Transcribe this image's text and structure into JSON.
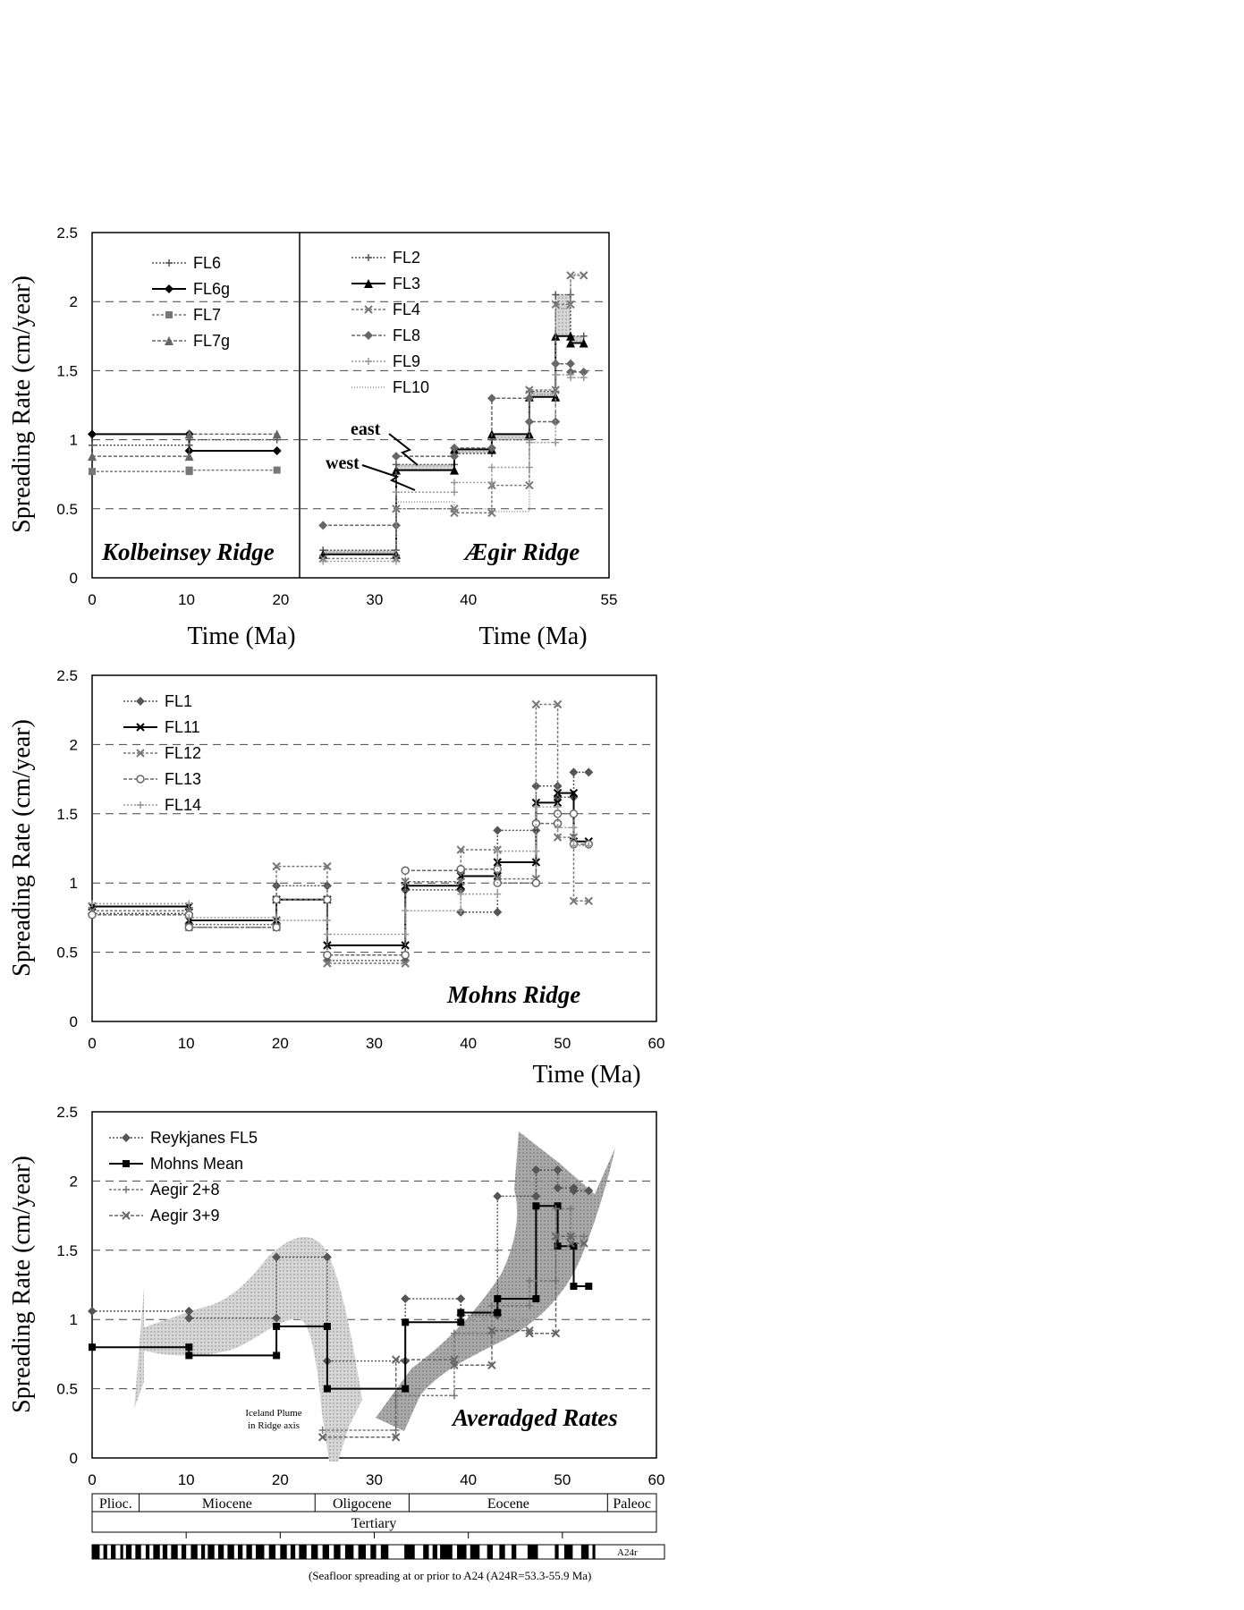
{
  "chart_data": [
    {
      "type": "line",
      "step": true,
      "ridge_label": "Kolbeinsey Ridge",
      "ylabel": "Spreading Rate (cm/year)",
      "xlabel": "Time (Ma)",
      "xlim": [
        0,
        22
      ],
      "ylim": [
        0,
        2.5
      ],
      "xticks": [
        0,
        10,
        20
      ],
      "yticks": [
        0,
        0.5,
        1,
        1.5,
        2,
        2.5
      ],
      "grid": "dashed horizontal at 0.5, 1, 1.5, 2",
      "legend_position": "top-left",
      "series": [
        {
          "name": "FL6",
          "marker": "plus",
          "x": [
            0,
            10.3,
            10.3,
            19.6
          ],
          "y": [
            0.96,
            0.96,
            1.0,
            1.0
          ]
        },
        {
          "name": "FL6g",
          "marker": "diamond",
          "x": [
            0,
            10.3,
            10.3,
            19.6
          ],
          "y": [
            1.04,
            1.04,
            0.92,
            0.92
          ]
        },
        {
          "name": "FL7",
          "marker": "square",
          "x": [
            0,
            10.3,
            10.3,
            19.6
          ],
          "y": [
            0.77,
            0.77,
            0.78,
            0.78
          ]
        },
        {
          "name": "FL7g",
          "marker": "triangle",
          "x": [
            0,
            10.3,
            10.3,
            19.6
          ],
          "y": [
            0.88,
            0.88,
            1.04,
            1.04
          ]
        }
      ]
    },
    {
      "type": "line",
      "step": true,
      "ridge_label": "Ægir Ridge",
      "xlabel": "Time (Ma)",
      "xlim": [
        22,
        55
      ],
      "ylim": [
        0,
        2.5
      ],
      "xticks": [
        30,
        40,
        55
      ],
      "grid": "dashed horizontal at 0.5, 1, 1.5, 2",
      "legend_position": "top-left",
      "annotations": [
        "east",
        "west"
      ],
      "series": [
        {
          "name": "FL2",
          "marker": "plus",
          "x": [
            24.5,
            32.3,
            32.3,
            38.5,
            38.5,
            42.5,
            42.5,
            46.5,
            46.5,
            49.3,
            49.3,
            50.9,
            50.9,
            52.3
          ],
          "y": [
            0.2,
            0.2,
            0.82,
            0.82,
            0.9,
            0.9,
            1.0,
            1.0,
            1.35,
            1.35,
            2.05,
            2.05,
            1.75,
            1.75
          ]
        },
        {
          "name": "FL3",
          "marker": "triangle",
          "x": [
            24.5,
            32.3,
            32.3,
            38.5,
            38.5,
            42.5,
            42.5,
            46.5,
            46.5,
            49.3,
            49.3,
            50.9,
            50.9,
            52.3
          ],
          "y": [
            0.17,
            0.17,
            0.78,
            0.78,
            0.93,
            0.93,
            1.04,
            1.04,
            1.31,
            1.31,
            1.75,
            1.75,
            1.7,
            1.7
          ]
        },
        {
          "name": "FL4",
          "marker": "x",
          "x": [
            24.5,
            32.3,
            32.3,
            38.5,
            38.5,
            42.5,
            42.5,
            46.5,
            46.5,
            49.3,
            49.3,
            50.9,
            50.9,
            52.3
          ],
          "y": [
            0.14,
            0.14,
            0.5,
            0.5,
            0.47,
            0.47,
            0.67,
            0.67,
            1.36,
            1.36,
            1.98,
            1.98,
            2.19,
            2.19
          ]
        },
        {
          "name": "FL8",
          "marker": "diamond",
          "x": [
            24.5,
            32.3,
            32.3,
            38.5,
            38.5,
            42.5,
            42.5,
            46.5,
            46.5,
            49.3,
            49.3,
            50.9,
            50.9,
            52.3
          ],
          "y": [
            0.38,
            0.38,
            0.88,
            0.88,
            0.94,
            0.94,
            1.3,
            1.3,
            1.13,
            1.13,
            1.55,
            1.55,
            1.49,
            1.49
          ]
        },
        {
          "name": "FL9",
          "marker": "plus",
          "x": [
            24.5,
            32.3,
            32.3,
            38.5,
            38.5,
            42.5,
            42.5,
            46.5,
            46.5,
            49.3,
            49.3,
            50.9,
            50.9,
            52.3
          ],
          "y": [
            0.12,
            0.12,
            0.62,
            0.62,
            0.69,
            0.69,
            0.8,
            0.8,
            0.98,
            0.98,
            1.47,
            1.47,
            1.45,
            1.45
          ]
        },
        {
          "name": "FL10",
          "marker": "none",
          "x": [
            24.5,
            32.3,
            32.3,
            38.5,
            38.5,
            42.5,
            42.5,
            46.5,
            46.5,
            49.3,
            49.3,
            50.9,
            50.9,
            52.3
          ],
          "y": [
            0.18,
            0.18,
            0.55,
            0.55,
            0.5,
            0.5,
            0.48,
            0.48,
            1.33,
            1.33,
            1.95,
            1.95,
            2.2,
            2.2
          ]
        }
      ]
    },
    {
      "type": "line",
      "step": true,
      "ridge_label": "Mohns Ridge",
      "ylabel": "Spreading Rate (cm/year)",
      "xlabel": "Time (Ma)",
      "xlim": [
        0,
        60
      ],
      "ylim": [
        0,
        2.5
      ],
      "xticks": [
        0,
        10,
        20,
        30,
        40,
        50,
        60
      ],
      "yticks": [
        0,
        0.5,
        1,
        1.5,
        2,
        2.5
      ],
      "grid": "dashed horizontal at 0.5, 1, 1.5, 2",
      "legend_position": "top-left",
      "series": [
        {
          "name": "FL1",
          "marker": "diamond",
          "x": [
            0,
            10.3,
            10.3,
            19.6,
            19.6,
            25,
            25,
            33.3,
            33.3,
            39.2,
            39.2,
            43.1,
            43.1,
            47.2,
            47.2,
            49.5,
            49.5,
            51.2,
            51.2,
            52.8
          ],
          "y": [
            0.78,
            0.78,
            0.7,
            0.7,
            0.98,
            0.98,
            0.44,
            0.44,
            0.95,
            0.95,
            0.79,
            0.79,
            1.38,
            1.38,
            1.7,
            1.7,
            1.62,
            1.62,
            1.8,
            1.8
          ]
        },
        {
          "name": "FL11",
          "marker": "x",
          "x": [
            0,
            10.3,
            10.3,
            19.6,
            19.6,
            25,
            25,
            33.3,
            33.3,
            39.2,
            39.2,
            43.1,
            43.1,
            47.2,
            47.2,
            49.5,
            49.5,
            51.2,
            51.2,
            52.8
          ],
          "y": [
            0.83,
            0.83,
            0.73,
            0.73,
            0.88,
            0.88,
            0.55,
            0.55,
            0.98,
            0.98,
            1.05,
            1.05,
            1.15,
            1.15,
            1.58,
            1.58,
            1.65,
            1.65,
            1.3,
            1.3
          ]
        },
        {
          "name": "FL12",
          "marker": "x",
          "x": [
            0,
            10.3,
            10.3,
            19.6,
            19.6,
            25,
            25,
            33.3,
            33.3,
            39.2,
            39.2,
            43.1,
            43.1,
            47.2,
            47.2,
            49.5,
            49.5,
            51.2,
            51.2,
            52.8
          ],
          "y": [
            0.8,
            0.8,
            0.68,
            0.68,
            1.12,
            1.12,
            0.42,
            0.42,
            1.01,
            1.01,
            1.24,
            1.24,
            1.03,
            1.03,
            2.29,
            2.29,
            1.33,
            1.33,
            0.87,
            0.87
          ]
        },
        {
          "name": "FL13",
          "marker": "circle",
          "x": [
            0,
            10.3,
            10.3,
            19.6,
            19.6,
            25,
            25,
            33.3,
            33.3,
            39.2,
            39.2,
            43.1,
            43.1,
            47.2,
            47.2,
            49.5,
            49.5,
            51.2,
            51.2,
            52.8
          ],
          "y": [
            0.77,
            0.77,
            0.68,
            0.68,
            0.88,
            0.88,
            0.48,
            0.48,
            1.09,
            1.09,
            1.1,
            1.1,
            1.0,
            1.0,
            1.43,
            1.43,
            1.5,
            1.5,
            1.28,
            1.28
          ]
        },
        {
          "name": "FL14",
          "marker": "plus",
          "x": [
            0,
            10.3,
            10.3,
            19.6,
            19.6,
            25,
            25,
            33.3,
            33.3,
            39.2,
            39.2,
            43.1,
            43.1,
            47.2,
            47.2,
            49.5,
            49.5,
            51.2,
            51.2,
            52.8
          ],
          "y": [
            0.85,
            0.85,
            0.75,
            0.75,
            0.73,
            0.73,
            0.63,
            0.63,
            0.8,
            0.8,
            0.92,
            0.92,
            1.23,
            1.23,
            1.55,
            1.55,
            1.4,
            1.4,
            1.27,
            1.27
          ]
        }
      ]
    },
    {
      "type": "line",
      "step": true,
      "ridge_label": "Averadged Rates",
      "ylabel": "Spreading Rate (cm/year)",
      "xlim": [
        0,
        60
      ],
      "ylim": [
        0,
        2.5
      ],
      "xticks": [
        0,
        10,
        20,
        30,
        40,
        50,
        60
      ],
      "yticks": [
        0,
        0.5,
        1,
        1.5,
        2,
        2.5
      ],
      "grid": "dashed horizontal at 0.5, 1, 1.5, 2",
      "legend_position": "top-left",
      "annotations": [
        "Iceland Plume",
        "in Ridge axis"
      ],
      "series": [
        {
          "name": "Reykjanes FL5",
          "marker": "diamond",
          "x": [
            0,
            10.3,
            10.3,
            19.6,
            19.6,
            25,
            25,
            33.3,
            33.3,
            39.2,
            39.2,
            43.1,
            43.1,
            47.2,
            47.2,
            49.5,
            49.5,
            51.2,
            51.2,
            52.8
          ],
          "y": [
            1.06,
            1.06,
            1.01,
            1.01,
            1.45,
            1.45,
            0.7,
            0.7,
            1.15,
            1.15,
            1.03,
            1.03,
            1.89,
            1.89,
            2.08,
            2.08,
            1.95,
            1.95,
            1.93,
            1.93
          ]
        },
        {
          "name": "Mohns Mean",
          "marker": "square",
          "x": [
            0,
            10.3,
            10.3,
            19.6,
            19.6,
            25,
            25,
            33.3,
            33.3,
            39.2,
            39.2,
            43.1,
            43.1,
            47.2,
            47.2,
            49.5,
            49.5,
            51.2,
            51.2,
            52.8
          ],
          "y": [
            0.8,
            0.8,
            0.74,
            0.74,
            0.95,
            0.95,
            0.5,
            0.5,
            0.98,
            0.98,
            1.05,
            1.05,
            1.15,
            1.15,
            1.82,
            1.82,
            1.53,
            1.53,
            1.24,
            1.24
          ]
        },
        {
          "name": "Aegir 2+8",
          "marker": "plus",
          "x": [
            24.5,
            32.3,
            32.3,
            38.5,
            38.5,
            42.5,
            42.5,
            46.5,
            46.5,
            49.3,
            49.3,
            50.9,
            50.9,
            52.3
          ],
          "y": [
            0.2,
            0.2,
            0.45,
            0.45,
            0.9,
            0.9,
            1.1,
            1.1,
            1.28,
            1.28,
            1.8,
            1.8,
            1.6,
            1.6
          ]
        },
        {
          "name": "Aegir 3+9",
          "marker": "x",
          "x": [
            24.5,
            32.3,
            32.3,
            38.5,
            38.5,
            42.5,
            42.5,
            46.5,
            46.5,
            49.3,
            49.3,
            50.9,
            50.9,
            52.3
          ],
          "y": [
            0.15,
            0.15,
            0.71,
            0.71,
            0.67,
            0.67,
            0.92,
            0.92,
            0.9,
            0.9,
            1.6,
            1.6,
            1.55,
            1.55
          ]
        }
      ]
    }
  ],
  "timescale": {
    "epochs": [
      {
        "label": "Plioc.",
        "from": 0,
        "to": 5
      },
      {
        "label": "Miocene",
        "from": 5,
        "to": 23.7
      },
      {
        "label": "Oligocene",
        "from": 23.7,
        "to": 33.7
      },
      {
        "label": "Eocene",
        "from": 33.7,
        "to": 54.8
      },
      {
        "label": "Paleoc",
        "from": 54.8,
        "to": 60
      }
    ],
    "period": "Tertiary",
    "chron_label": "A24r",
    "footnote": "(Seafloor spreading at or prior to A24 (A24R=53.3-55.9 Ma)"
  }
}
